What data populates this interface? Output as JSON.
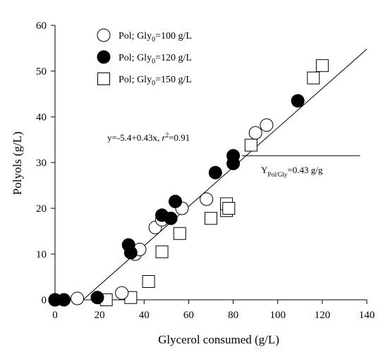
{
  "chart_data": {
    "type": "scatter",
    "title": "",
    "xlabel": "Glycerol consumed (g/L)",
    "ylabel": "Polyols (g/L)",
    "xlim": [
      0,
      140
    ],
    "ylim": [
      0,
      60
    ],
    "xticks": [
      0,
      20,
      40,
      60,
      80,
      100,
      120,
      140
    ],
    "yticks": [
      0,
      10,
      20,
      30,
      40,
      50,
      60
    ],
    "grid": false,
    "legend_position": "top-left",
    "series": [
      {
        "name_parts": [
          "Pol; Gly",
          "0",
          "=100 g/L"
        ],
        "marker": "open-circle",
        "points": [
          [
            0,
            0
          ],
          [
            10,
            0.3
          ],
          [
            30,
            1.5
          ],
          [
            36,
            10
          ],
          [
            38,
            11
          ],
          [
            45,
            15.8
          ],
          [
            48,
            17.5
          ],
          [
            57,
            20
          ],
          [
            68,
            22
          ],
          [
            90,
            36.5
          ],
          [
            95,
            38.2
          ]
        ]
      },
      {
        "name_parts": [
          "Pol; Gly",
          "0",
          "=120 g/L"
        ],
        "marker": "filled-circle",
        "points": [
          [
            0,
            0
          ],
          [
            4,
            0
          ],
          [
            19,
            0.5
          ],
          [
            33,
            12
          ],
          [
            34,
            10.3
          ],
          [
            48,
            18.5
          ],
          [
            52,
            17.8
          ],
          [
            54,
            21.5
          ],
          [
            72,
            27.8
          ],
          [
            80,
            29.8
          ],
          [
            80,
            31.5
          ],
          [
            109,
            43.5
          ]
        ]
      },
      {
        "name_parts": [
          "Pol; Gly",
          "0",
          "=150 g/L"
        ],
        "marker": "open-square",
        "points": [
          [
            23,
            0
          ],
          [
            34,
            0.5
          ],
          [
            42,
            4
          ],
          [
            48,
            10.5
          ],
          [
            56,
            14.5
          ],
          [
            70,
            17.8
          ],
          [
            77,
            19.5
          ],
          [
            77,
            21
          ],
          [
            78,
            20
          ],
          [
            88,
            33.8
          ],
          [
            116,
            48.5
          ],
          [
            120,
            51.2
          ]
        ]
      }
    ],
    "fit_line": {
      "intercept": -5.4,
      "slope": 0.43,
      "x_range": [
        12.6,
        140
      ]
    },
    "tangent_line": {
      "y": 31.5,
      "x_range": [
        84,
        137
      ]
    },
    "annotations": {
      "equation_parts": [
        "y=-5.4+0.43x, ",
        "r",
        "2",
        "=0.91"
      ],
      "yield_parts": [
        "Y",
        "Pol/Gly",
        "=0.43 g/g"
      ]
    }
  }
}
